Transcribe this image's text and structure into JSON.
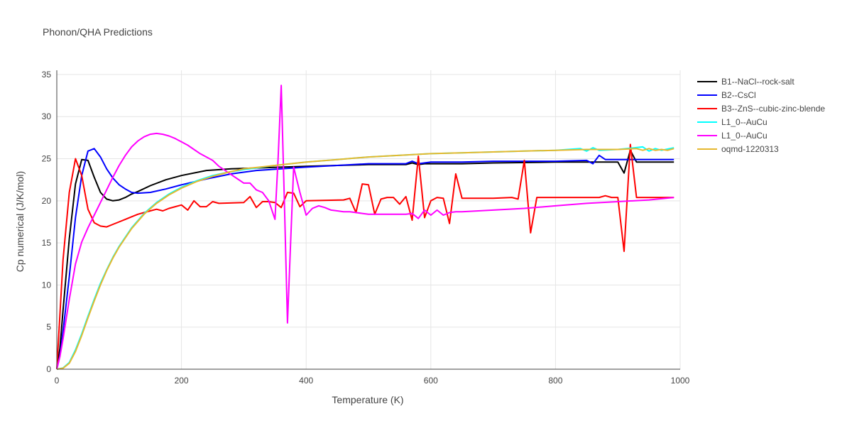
{
  "chart_data": {
    "type": "line",
    "title": "Phonon/QHA Predictions",
    "xlabel": "Temperature (K)",
    "ylabel": "Cp numerical (J/K/mol)",
    "xlim": [
      0,
      1000
    ],
    "ylim": [
      0,
      35.5
    ],
    "xticks": [
      0,
      200,
      400,
      600,
      800,
      1000
    ],
    "yticks": [
      0,
      5,
      10,
      15,
      20,
      25,
      30,
      35
    ],
    "grid": true,
    "legend_position": "right",
    "series": [
      {
        "name": "B1--NaCl--rock-salt",
        "color": "#000000",
        "x": [
          0,
          5,
          10,
          20,
          30,
          40,
          50,
          60,
          70,
          80,
          90,
          100,
          110,
          120,
          130,
          150,
          175,
          200,
          240,
          280,
          320,
          360,
          400,
          450,
          500,
          560,
          570,
          580,
          590,
          650,
          700,
          800,
          900,
          910,
          920,
          930,
          990
        ],
        "y": [
          0,
          2.5,
          7.0,
          15.5,
          22.0,
          24.9,
          24.8,
          22.8,
          21.0,
          20.2,
          20.0,
          20.1,
          20.4,
          20.8,
          21.1,
          21.8,
          22.5,
          23.0,
          23.6,
          23.8,
          23.9,
          24.0,
          24.1,
          24.2,
          24.3,
          24.3,
          24.5,
          24.3,
          24.4,
          24.4,
          24.5,
          24.6,
          24.6,
          23.3,
          26.0,
          24.6,
          24.6
        ]
      },
      {
        "name": "B2--CsCl",
        "color": "#0000ff",
        "x": [
          0,
          5,
          10,
          20,
          30,
          40,
          50,
          60,
          70,
          80,
          90,
          100,
          110,
          120,
          130,
          150,
          175,
          200,
          240,
          280,
          320,
          360,
          400,
          450,
          500,
          560,
          570,
          580,
          600,
          650,
          700,
          800,
          850,
          860,
          870,
          880,
          900,
          990
        ],
        "y": [
          0,
          1.6,
          4.5,
          11.0,
          18.0,
          23.0,
          25.9,
          26.2,
          25.2,
          23.8,
          22.7,
          21.9,
          21.4,
          21.0,
          20.9,
          21.0,
          21.4,
          21.9,
          22.6,
          23.2,
          23.6,
          23.8,
          24.0,
          24.2,
          24.4,
          24.4,
          24.7,
          24.4,
          24.6,
          24.6,
          24.7,
          24.7,
          24.8,
          24.4,
          25.4,
          24.9,
          24.9,
          24.9
        ]
      },
      {
        "name": "B3--ZnS--cubic-zinc-blende",
        "color": "#ff0000",
        "x": [
          0,
          5,
          10,
          20,
          30,
          40,
          50,
          60,
          70,
          80,
          90,
          100,
          110,
          120,
          130,
          140,
          150,
          160,
          170,
          180,
          190,
          200,
          210,
          220,
          230,
          240,
          250,
          260,
          300,
          310,
          320,
          330,
          340,
          350,
          360,
          370,
          380,
          390,
          400,
          460,
          470,
          480,
          490,
          500,
          510,
          520,
          530,
          540,
          550,
          560,
          570,
          580,
          590,
          600,
          610,
          620,
          630,
          640,
          650,
          700,
          730,
          740,
          750,
          760,
          770,
          860,
          870,
          880,
          890,
          900,
          910,
          920,
          930,
          990
        ],
        "y": [
          0,
          6.5,
          13.0,
          21.0,
          25.0,
          23.0,
          19.0,
          17.4,
          17.0,
          16.9,
          17.2,
          17.5,
          17.8,
          18.1,
          18.4,
          18.6,
          18.8,
          19.0,
          18.8,
          19.1,
          19.3,
          19.5,
          18.9,
          20.0,
          19.3,
          19.3,
          19.9,
          19.7,
          19.8,
          20.5,
          19.2,
          19.9,
          19.9,
          19.8,
          19.2,
          21.0,
          20.9,
          19.3,
          20.0,
          20.1,
          20.3,
          18.6,
          22.0,
          21.9,
          18.4,
          20.2,
          20.4,
          20.4,
          19.6,
          20.5,
          17.7,
          25.3,
          18.0,
          20.0,
          20.4,
          20.3,
          17.3,
          23.2,
          20.3,
          20.3,
          20.4,
          20.2,
          24.8,
          16.2,
          20.4,
          20.4,
          20.4,
          20.6,
          20.4,
          20.4,
          14.0,
          26.7,
          20.4,
          20.4
        ]
      },
      {
        "name": "L1_0--AuCu",
        "color": "#00ffff",
        "x": [
          0,
          10,
          20,
          30,
          40,
          50,
          60,
          70,
          80,
          90,
          100,
          120,
          140,
          160,
          180,
          200,
          225,
          250,
          275,
          300,
          350,
          400,
          450,
          500,
          550,
          600,
          650,
          700,
          750,
          800,
          840,
          850,
          860,
          870,
          900,
          940,
          950,
          960,
          970,
          990
        ],
        "y": [
          0,
          0.15,
          0.8,
          2.3,
          4.2,
          6.3,
          8.3,
          10.2,
          11.8,
          13.3,
          14.6,
          16.8,
          18.5,
          19.8,
          20.8,
          21.6,
          22.4,
          23.0,
          23.4,
          23.7,
          24.2,
          24.6,
          24.9,
          25.2,
          25.4,
          25.6,
          25.7,
          25.8,
          25.9,
          26.0,
          26.2,
          25.9,
          26.3,
          26.0,
          26.1,
          26.4,
          25.9,
          26.2,
          26.0,
          26.3
        ]
      },
      {
        "name": "L1_0--AuCu",
        "color": "#ff00ff",
        "x": [
          0,
          5,
          10,
          20,
          30,
          40,
          50,
          60,
          70,
          80,
          90,
          100,
          110,
          120,
          130,
          140,
          150,
          160,
          170,
          180,
          190,
          200,
          210,
          220,
          230,
          240,
          250,
          260,
          270,
          280,
          290,
          300,
          310,
          320,
          330,
          340,
          350,
          355,
          360,
          365,
          370,
          375,
          380,
          390,
          400,
          410,
          420,
          430,
          440,
          450,
          460,
          470,
          480,
          490,
          500,
          560,
          570,
          580,
          590,
          600,
          610,
          620,
          630,
          640,
          650,
          700,
          750,
          800,
          850,
          900,
          950,
          990
        ],
        "y": [
          0,
          1.5,
          3.6,
          8.3,
          12.5,
          15.1,
          16.8,
          18.3,
          19.8,
          21.3,
          22.8,
          24.2,
          25.4,
          26.4,
          27.1,
          27.6,
          27.9,
          28.0,
          27.9,
          27.7,
          27.4,
          27.0,
          26.6,
          26.1,
          25.6,
          25.2,
          24.8,
          24.1,
          23.6,
          23.1,
          22.6,
          22.1,
          22.1,
          21.3,
          21.0,
          20.0,
          17.8,
          25.0,
          33.7,
          20.0,
          5.5,
          15.0,
          24.0,
          21.0,
          18.3,
          19.1,
          19.4,
          19.2,
          18.9,
          18.8,
          18.7,
          18.7,
          18.6,
          18.5,
          18.4,
          18.4,
          18.5,
          17.9,
          18.9,
          18.3,
          18.9,
          18.3,
          18.6,
          18.7,
          18.7,
          18.9,
          19.1,
          19.4,
          19.7,
          19.9,
          20.1,
          20.4
        ]
      },
      {
        "name": "oqmd-1220313",
        "color": "#e6b82e",
        "x": [
          0,
          10,
          20,
          30,
          40,
          50,
          60,
          70,
          80,
          90,
          100,
          120,
          140,
          160,
          180,
          200,
          225,
          250,
          275,
          300,
          350,
          400,
          450,
          500,
          550,
          600,
          650,
          700,
          750,
          800,
          850,
          900,
          930,
          940,
          950,
          960,
          970,
          980,
          990
        ],
        "y": [
          0,
          0.12,
          0.7,
          2.1,
          4.0,
          6.1,
          8.1,
          10.0,
          11.7,
          13.2,
          14.5,
          16.7,
          18.4,
          19.7,
          20.7,
          21.5,
          22.3,
          22.9,
          23.4,
          23.8,
          24.2,
          24.6,
          24.9,
          25.2,
          25.4,
          25.6,
          25.7,
          25.8,
          25.9,
          26.0,
          26.1,
          26.1,
          26.2,
          26.0,
          26.2,
          26.0,
          26.1,
          26.0,
          26.2
        ]
      }
    ]
  }
}
